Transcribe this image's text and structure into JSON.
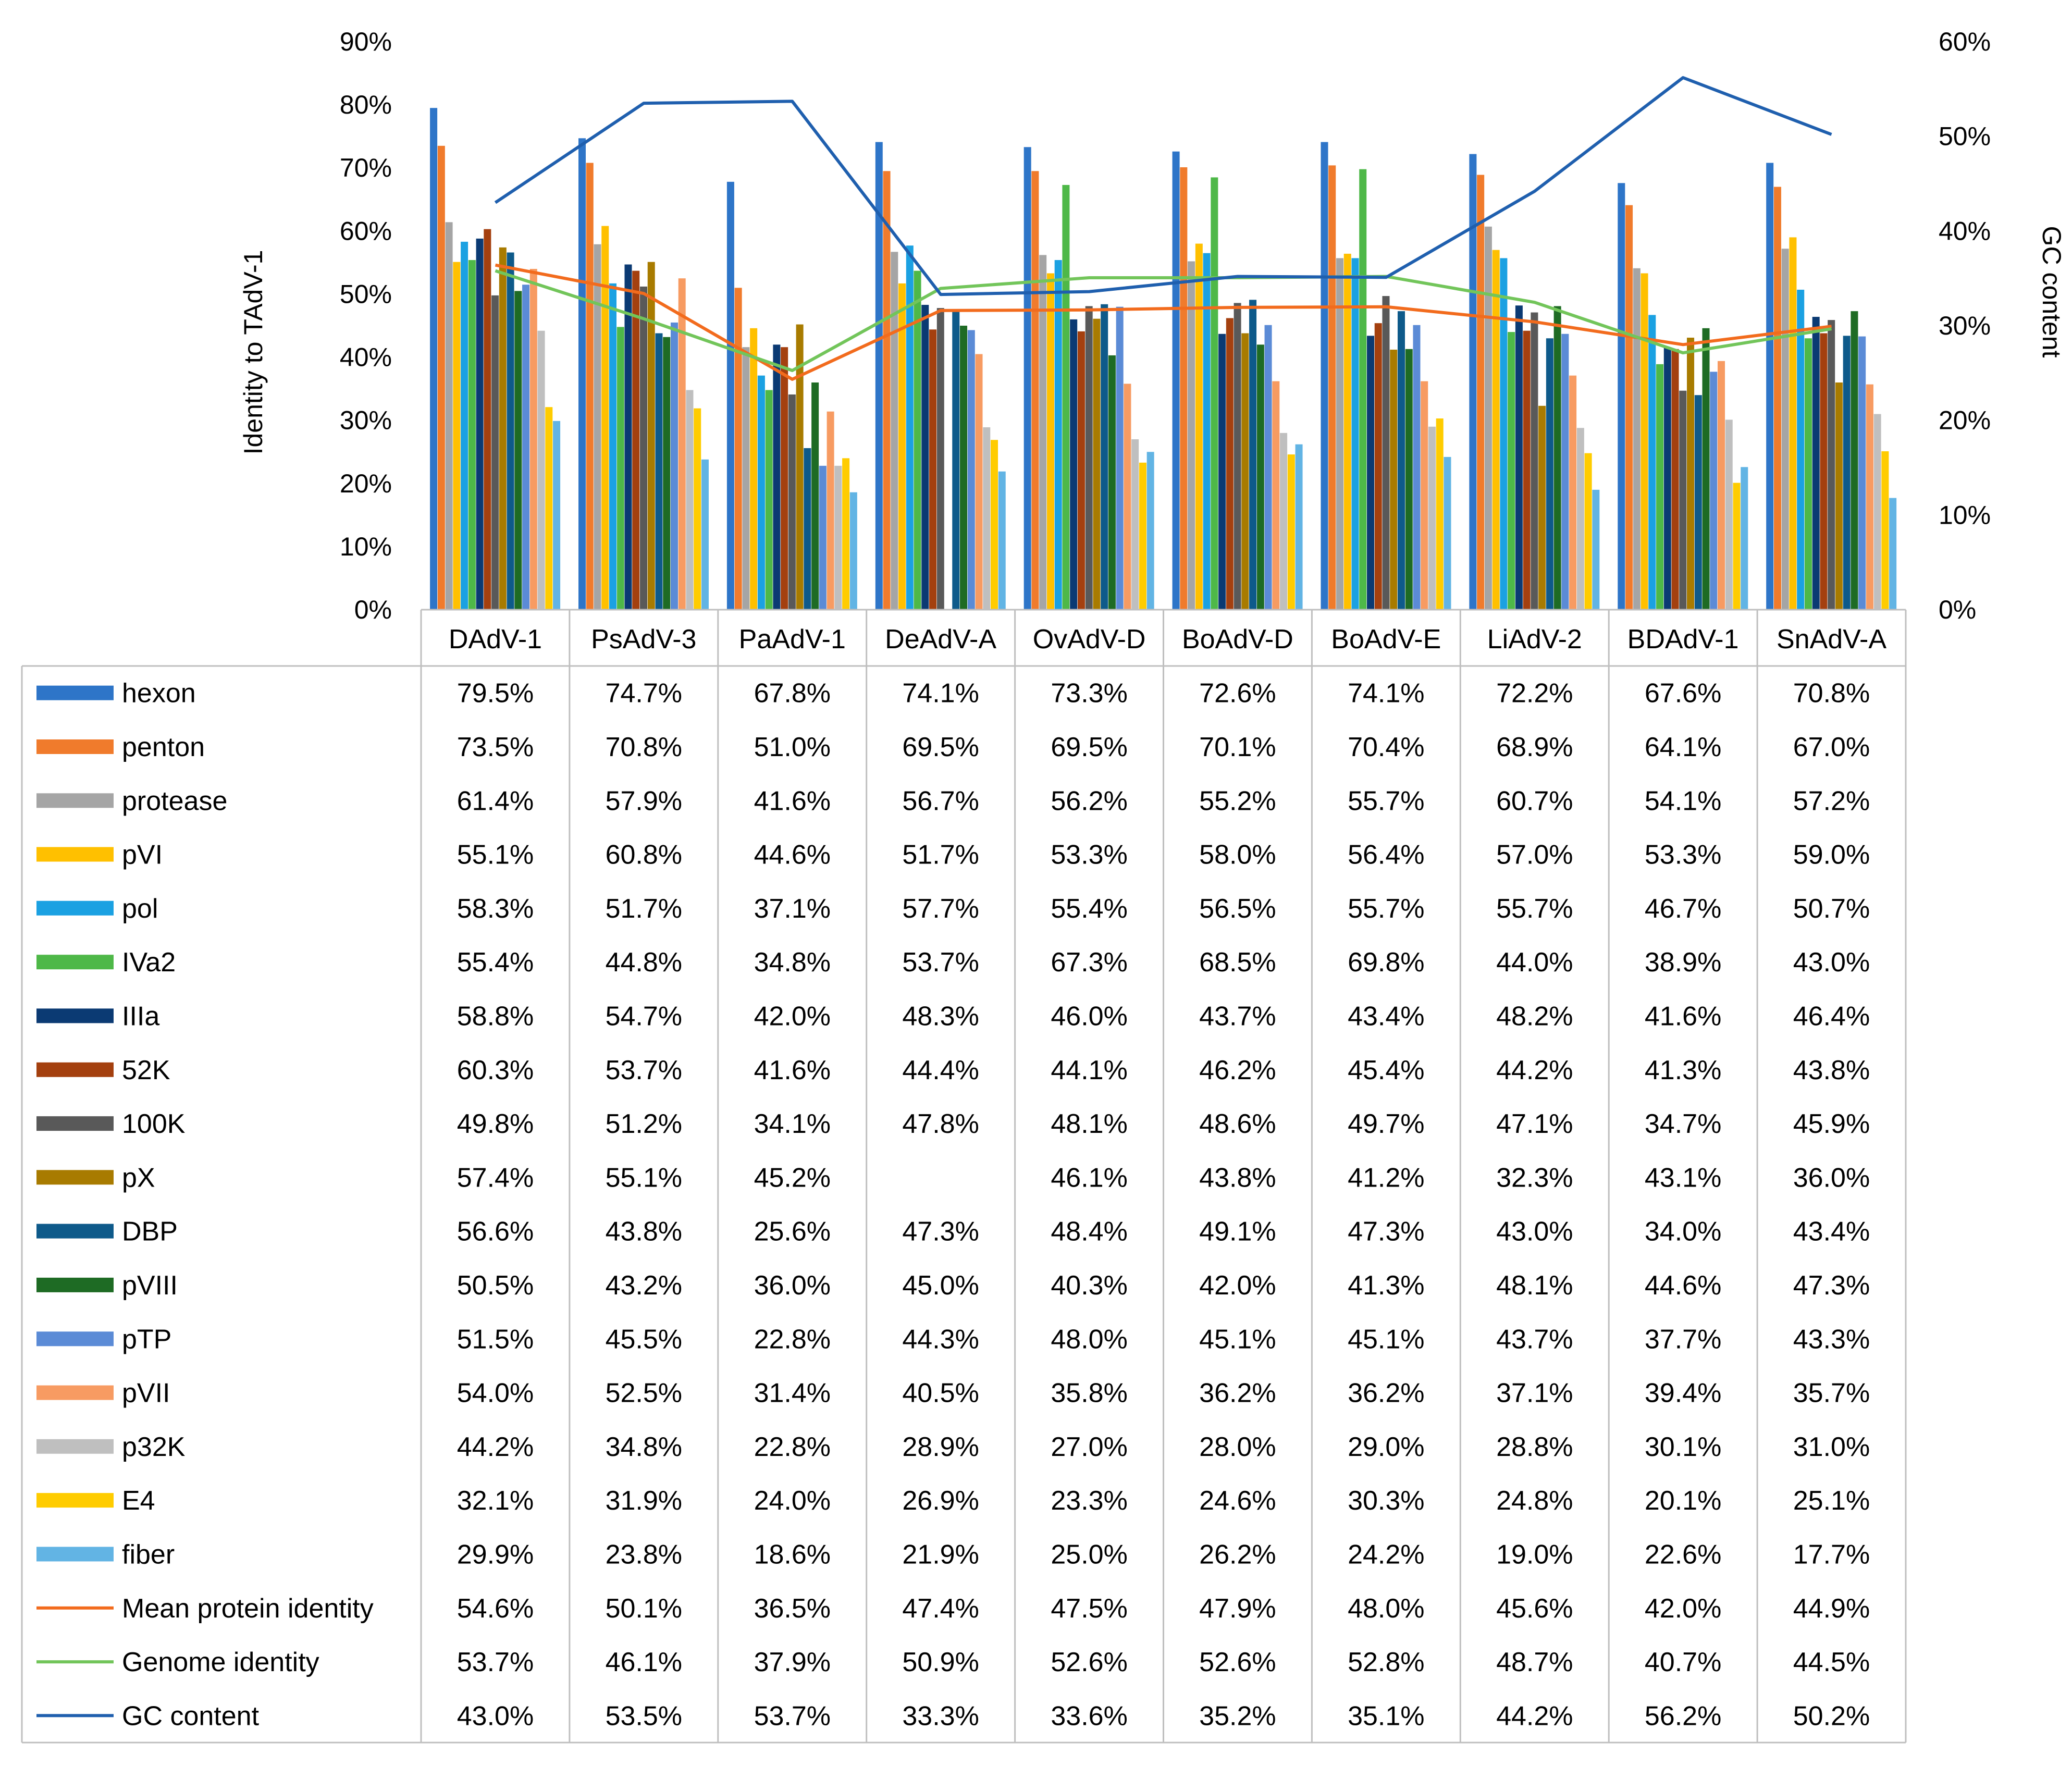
{
  "chart_data": {
    "type": "bar",
    "title": "",
    "ylabel": "Identity to TAdV-1",
    "y2label": "GC content",
    "ylim": [
      0,
      90
    ],
    "y_ticks": [
      "0%",
      "10%",
      "20%",
      "30%",
      "40%",
      "50%",
      "60%",
      "70%",
      "80%",
      "90%"
    ],
    "y2lim": [
      0,
      60
    ],
    "y2_ticks": [
      "0%",
      "10%",
      "20%",
      "30%",
      "40%",
      "50%",
      "60%"
    ],
    "legend": "data table below plot",
    "categories": [
      "DAdV-1",
      "PsAdV-3",
      "PaAdV-1",
      "DeAdV-A",
      "OvAdV-D",
      "BoAdV-D",
      "BoAdV-E",
      "LiAdV-2",
      "BDAdV-1",
      "SnAdV-A"
    ],
    "series": [
      {
        "name": "hexon",
        "kind": "bar",
        "color": "#2E75C8",
        "values": [
          79.5,
          74.7,
          67.8,
          74.1,
          73.3,
          72.6,
          74.1,
          72.2,
          67.6,
          70.8
        ],
        "labels": [
          "79.5%",
          "74.7%",
          "67.8%",
          "74.1%",
          "73.3%",
          "72.6%",
          "74.1%",
          "72.2%",
          "67.6%",
          "70.8%"
        ]
      },
      {
        "name": "penton",
        "kind": "bar",
        "color": "#F07B2C",
        "values": [
          73.5,
          70.8,
          51.0,
          69.5,
          69.5,
          70.1,
          70.4,
          68.9,
          64.1,
          67.0
        ],
        "labels": [
          "73.5%",
          "70.8%",
          "51.0%",
          "69.5%",
          "69.5%",
          "70.1%",
          "70.4%",
          "68.9%",
          "64.1%",
          "67.0%"
        ]
      },
      {
        "name": "protease",
        "kind": "bar",
        "color": "#A5A5A5",
        "values": [
          61.4,
          57.9,
          41.6,
          56.7,
          56.2,
          55.2,
          55.7,
          60.7,
          54.1,
          57.2
        ],
        "labels": [
          "61.4%",
          "57.9%",
          "41.6%",
          "56.7%",
          "56.2%",
          "55.2%",
          "55.7%",
          "60.7%",
          "54.1%",
          "57.2%"
        ]
      },
      {
        "name": "pVI",
        "kind": "bar",
        "color": "#FFC000",
        "values": [
          55.1,
          60.8,
          44.6,
          51.7,
          53.3,
          58.0,
          56.4,
          57.0,
          53.3,
          59.0
        ],
        "labels": [
          "55.1%",
          "60.8%",
          "44.6%",
          "51.7%",
          "53.3%",
          "58.0%",
          "56.4%",
          "57.0%",
          "53.3%",
          "59.0%"
        ]
      },
      {
        "name": "pol",
        "kind": "bar",
        "color": "#1BA1E2",
        "values": [
          58.3,
          51.7,
          37.1,
          57.7,
          55.4,
          56.5,
          55.7,
          55.7,
          46.7,
          50.7
        ],
        "labels": [
          "58.3%",
          "51.7%",
          "37.1%",
          "57.7%",
          "55.4%",
          "56.5%",
          "55.7%",
          "55.7%",
          "46.7%",
          "50.7%"
        ]
      },
      {
        "name": "IVa2",
        "kind": "bar",
        "color": "#4EB848",
        "values": [
          55.4,
          44.8,
          34.8,
          53.7,
          67.3,
          68.5,
          69.8,
          44.0,
          38.9,
          43.0
        ],
        "labels": [
          "55.4%",
          "44.8%",
          "34.8%",
          "53.7%",
          "67.3%",
          "68.5%",
          "69.8%",
          "44.0%",
          "38.9%",
          "43.0%"
        ]
      },
      {
        "name": "IIIa",
        "kind": "bar",
        "color": "#0B3A73",
        "values": [
          58.8,
          54.7,
          42.0,
          48.3,
          46.0,
          43.7,
          43.4,
          48.2,
          41.6,
          46.4
        ],
        "labels": [
          "58.8%",
          "54.7%",
          "42.0%",
          "48.3%",
          "46.0%",
          "43.7%",
          "43.4%",
          "48.2%",
          "41.6%",
          "46.4%"
        ]
      },
      {
        "name": "52K",
        "kind": "bar",
        "color": "#A4400F",
        "values": [
          60.3,
          53.7,
          41.6,
          44.4,
          44.1,
          46.2,
          45.4,
          44.2,
          41.3,
          43.8
        ],
        "labels": [
          "60.3%",
          "53.7%",
          "41.6%",
          "44.4%",
          "44.1%",
          "46.2%",
          "45.4%",
          "44.2%",
          "41.3%",
          "43.8%"
        ]
      },
      {
        "name": "100K",
        "kind": "bar",
        "color": "#595959",
        "values": [
          49.8,
          51.2,
          34.1,
          47.8,
          48.1,
          48.6,
          49.7,
          47.1,
          34.7,
          45.9
        ],
        "labels": [
          "49.8%",
          "51.2%",
          "34.1%",
          "47.8%",
          "48.1%",
          "48.6%",
          "49.7%",
          "47.1%",
          "34.7%",
          "45.9%"
        ]
      },
      {
        "name": "pX",
        "kind": "bar",
        "color": "#A87B00",
        "values": [
          57.4,
          55.1,
          45.2,
          null,
          46.1,
          43.8,
          41.2,
          32.3,
          43.1,
          36.0
        ],
        "labels": [
          "57.4%",
          "55.1%",
          "45.2%",
          "",
          "46.1%",
          "43.8%",
          "41.2%",
          "32.3%",
          "43.1%",
          "36.0%"
        ]
      },
      {
        "name": "DBP",
        "kind": "bar",
        "color": "#0E5A8A",
        "values": [
          56.6,
          43.8,
          25.6,
          47.3,
          48.4,
          49.1,
          47.3,
          43.0,
          34.0,
          43.4
        ],
        "labels": [
          "56.6%",
          "43.8%",
          "25.6%",
          "47.3%",
          "48.4%",
          "49.1%",
          "47.3%",
          "43.0%",
          "34.0%",
          "43.4%"
        ]
      },
      {
        "name": "pVIII",
        "kind": "bar",
        "color": "#1E6B24",
        "values": [
          50.5,
          43.2,
          36.0,
          45.0,
          40.3,
          42.0,
          41.3,
          48.1,
          44.6,
          47.3
        ],
        "labels": [
          "50.5%",
          "43.2%",
          "36.0%",
          "45.0%",
          "40.3%",
          "42.0%",
          "41.3%",
          "48.1%",
          "44.6%",
          "47.3%"
        ]
      },
      {
        "name": "pTP",
        "kind": "bar",
        "color": "#5B8BD6",
        "values": [
          51.5,
          45.5,
          22.8,
          44.3,
          48.0,
          45.1,
          45.1,
          43.7,
          37.7,
          43.3
        ],
        "labels": [
          "51.5%",
          "45.5%",
          "22.8%",
          "44.3%",
          "48.0%",
          "45.1%",
          "45.1%",
          "43.7%",
          "37.7%",
          "43.3%"
        ]
      },
      {
        "name": "pVII",
        "kind": "bar",
        "color": "#F79B62",
        "values": [
          54.0,
          52.5,
          31.4,
          40.5,
          35.8,
          36.2,
          36.2,
          37.1,
          39.4,
          35.7
        ],
        "labels": [
          "54.0%",
          "52.5%",
          "31.4%",
          "40.5%",
          "35.8%",
          "36.2%",
          "36.2%",
          "37.1%",
          "39.4%",
          "35.7%"
        ]
      },
      {
        "name": "p32K",
        "kind": "bar",
        "color": "#BFBFBF",
        "values": [
          44.2,
          34.8,
          22.8,
          28.9,
          27.0,
          28.0,
          29.0,
          28.8,
          30.1,
          31.0
        ],
        "labels": [
          "44.2%",
          "34.8%",
          "22.8%",
          "28.9%",
          "27.0%",
          "28.0%",
          "29.0%",
          "28.8%",
          "30.1%",
          "31.0%"
        ]
      },
      {
        "name": "E4",
        "kind": "bar",
        "color": "#FFCC00",
        "values": [
          32.1,
          31.9,
          24.0,
          26.9,
          23.3,
          24.6,
          30.3,
          24.8,
          20.1,
          25.1
        ],
        "labels": [
          "32.1%",
          "31.9%",
          "24.0%",
          "26.9%",
          "23.3%",
          "24.6%",
          "30.3%",
          "24.8%",
          "20.1%",
          "25.1%"
        ]
      },
      {
        "name": "fiber",
        "kind": "bar",
        "color": "#62B4E4",
        "values": [
          29.9,
          23.8,
          18.6,
          21.9,
          25.0,
          26.2,
          24.2,
          19.0,
          22.6,
          17.7
        ],
        "labels": [
          "29.9%",
          "23.8%",
          "18.6%",
          "21.9%",
          "25.0%",
          "26.2%",
          "24.2%",
          "19.0%",
          "22.6%",
          "17.7%"
        ]
      },
      {
        "name": "Mean protein identity",
        "kind": "line",
        "axis": "left",
        "color": "#F26B1D",
        "values": [
          54.6,
          50.1,
          36.5,
          47.4,
          47.5,
          47.9,
          48.0,
          45.6,
          42.0,
          44.9
        ],
        "labels": [
          "54.6%",
          "50.1%",
          "36.5%",
          "47.4%",
          "47.5%",
          "47.9%",
          "48.0%",
          "45.6%",
          "42.0%",
          "44.9%"
        ]
      },
      {
        "name": "Genome identity",
        "kind": "line",
        "axis": "left",
        "color": "#72C55A",
        "values": [
          53.7,
          46.1,
          37.9,
          50.9,
          52.6,
          52.6,
          52.8,
          48.7,
          40.7,
          44.5
        ],
        "labels": [
          "53.7%",
          "46.1%",
          "37.9%",
          "50.9%",
          "52.6%",
          "52.6%",
          "52.8%",
          "48.7%",
          "40.7%",
          "44.5%"
        ]
      },
      {
        "name": "GC content",
        "kind": "line",
        "axis": "right",
        "color": "#1F5FAE",
        "values": [
          43.0,
          53.5,
          53.7,
          33.3,
          33.6,
          35.2,
          35.1,
          44.2,
          56.2,
          50.2
        ],
        "labels": [
          "43.0%",
          "53.5%",
          "53.7%",
          "33.3%",
          "33.6%",
          "35.2%",
          "35.1%",
          "44.2%",
          "56.2%",
          "50.2%"
        ]
      }
    ]
  }
}
